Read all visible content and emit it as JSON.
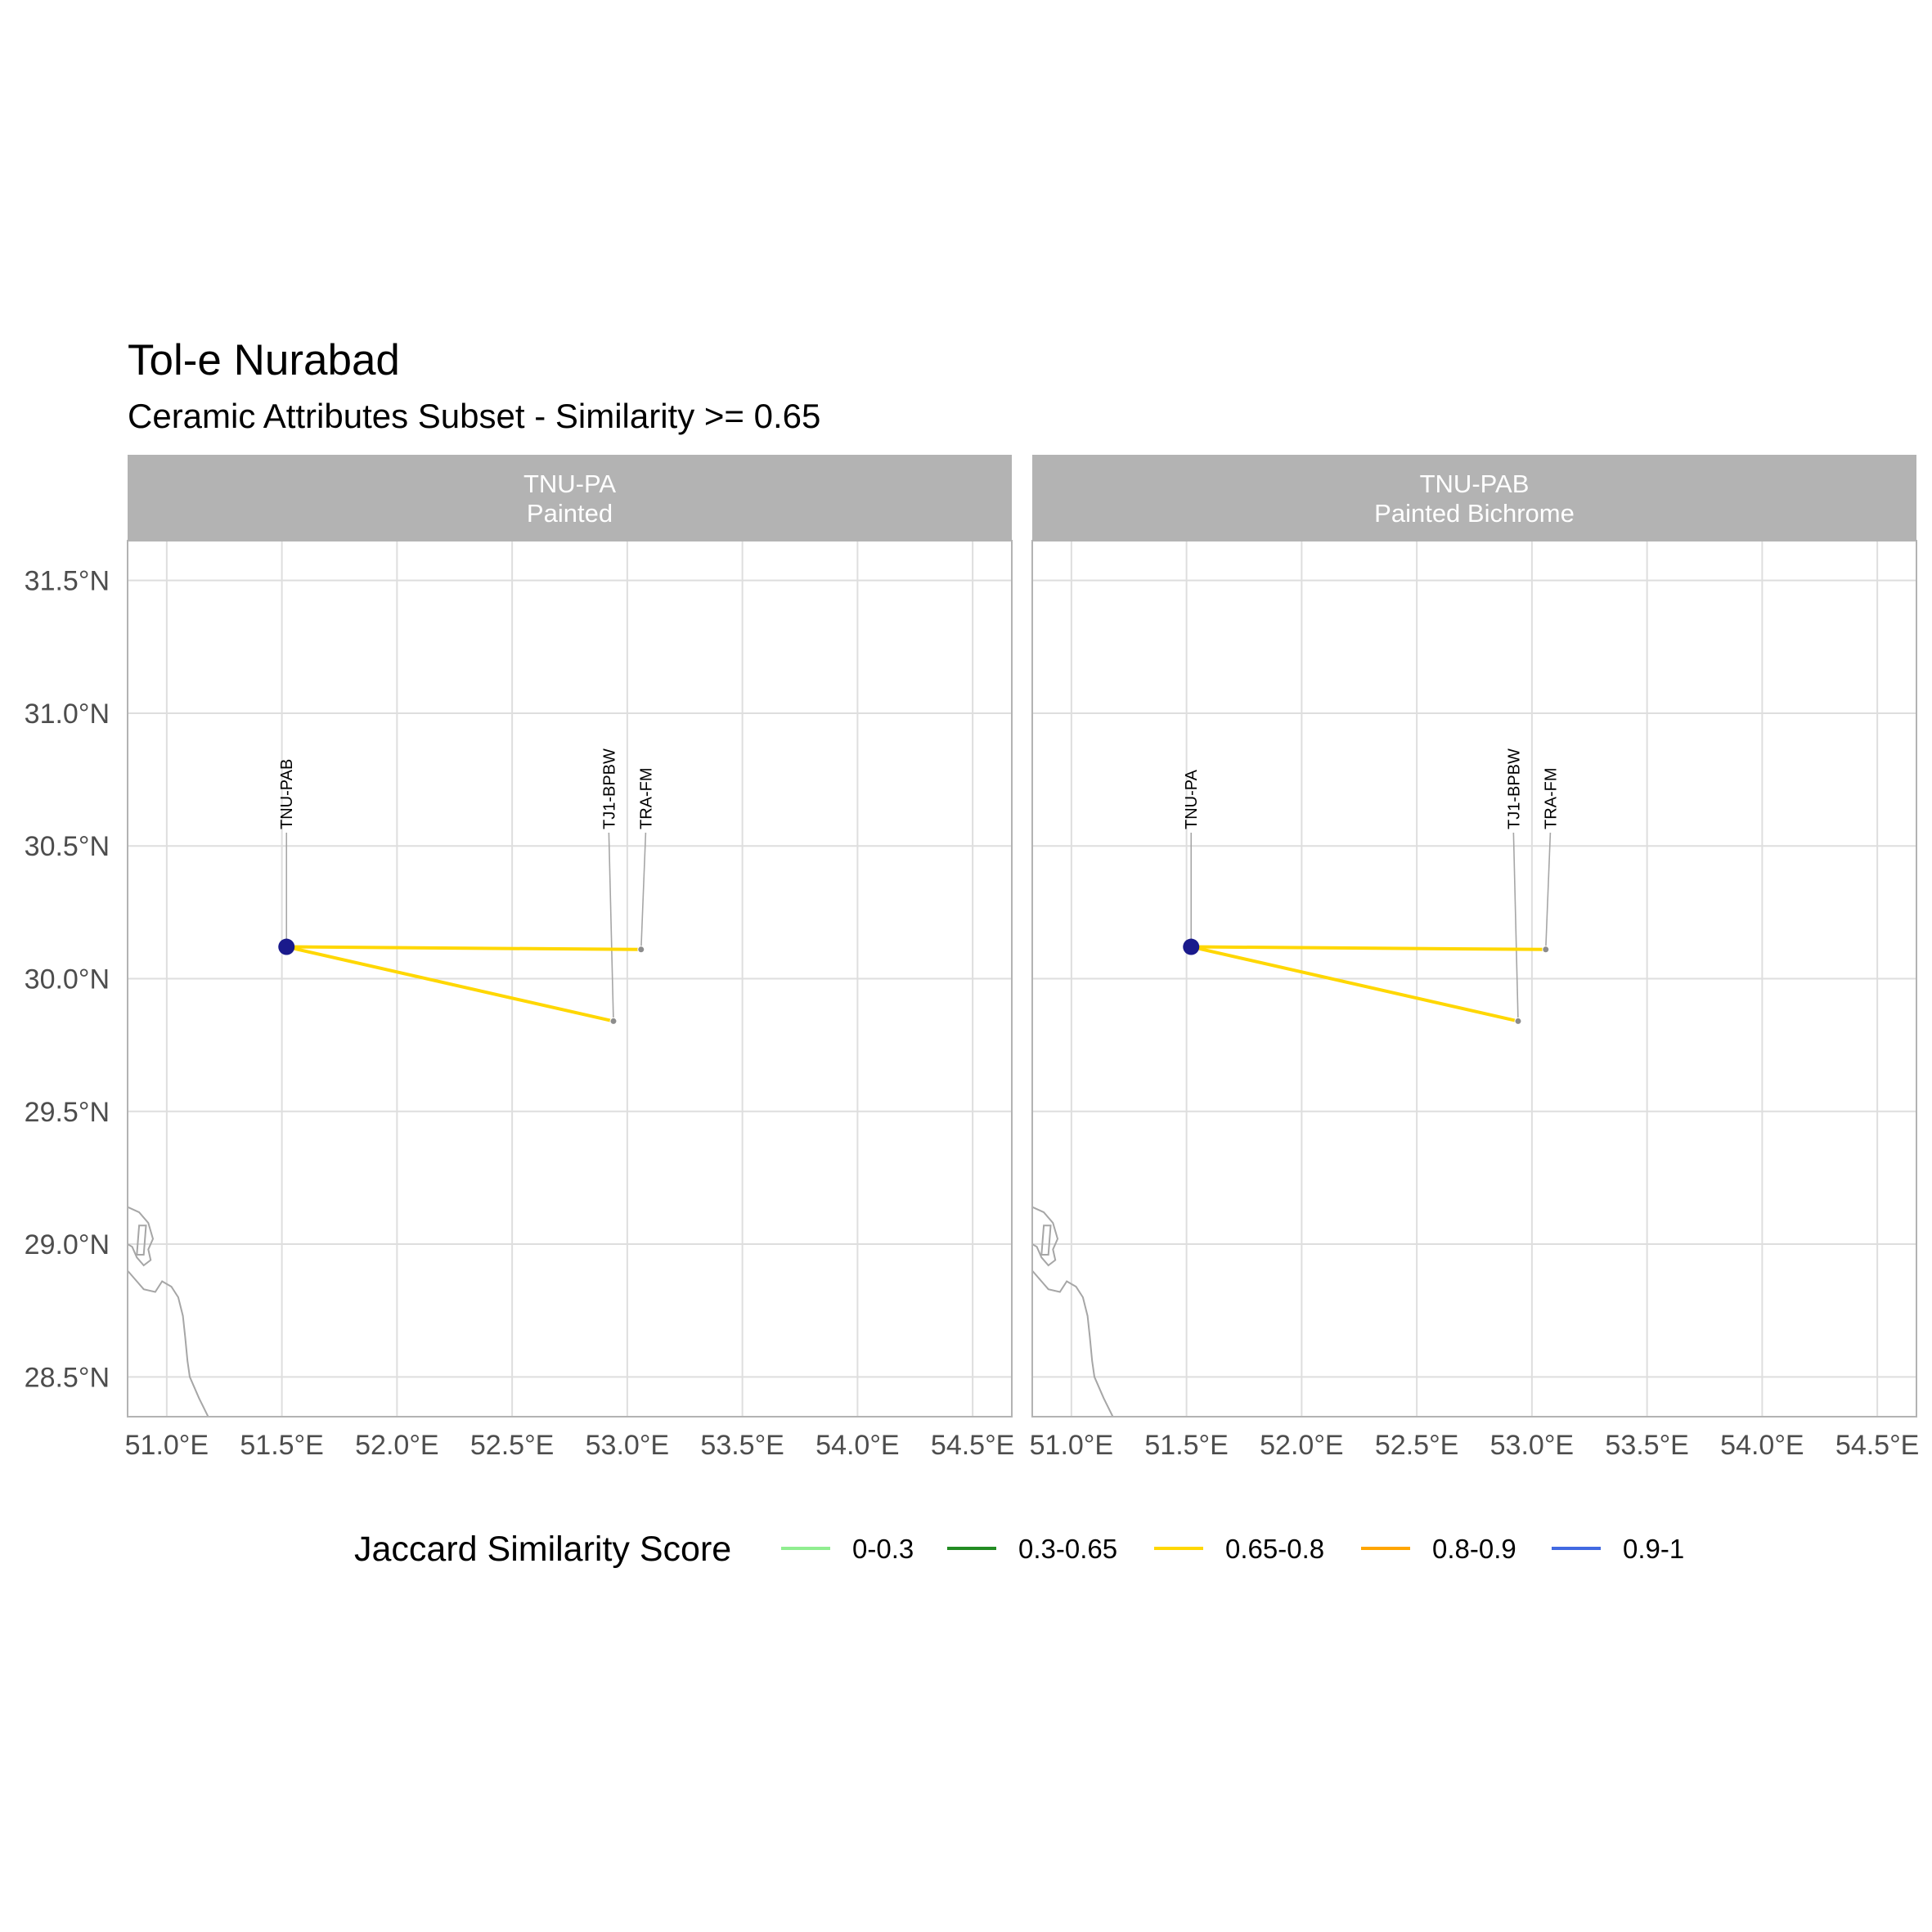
{
  "title": "Tol-e Nurabad",
  "subtitle": "Ceramic Attributes Subset - Similarity >= 0.65",
  "colors": {
    "strip_bg": "#b3b3b3",
    "grid": "#dedede",
    "panel_border": "#b3b3b3",
    "coast": "#a6a6a6",
    "focal_point": "#1a1a8c",
    "site_point": "#8c8c8c",
    "leader": "#a6a6a6"
  },
  "chart_data": {
    "type": "map",
    "x_axis": {
      "range": [
        50.83,
        54.67
      ],
      "breaks": [
        51.0,
        51.5,
        52.0,
        52.5,
        53.0,
        53.5,
        54.0,
        54.5
      ],
      "labels": [
        "51.0°E",
        "51.5°E",
        "52.0°E",
        "52.5°E",
        "53.0°E",
        "53.5°E",
        "54.0°E",
        "54.5°E"
      ]
    },
    "y_axis": {
      "range": [
        28.35,
        31.65
      ],
      "breaks": [
        28.5,
        29.0,
        29.5,
        30.0,
        30.5,
        31.0,
        31.5
      ],
      "labels": [
        "28.5°N",
        "29.0°N",
        "29.5°N",
        "30.0°N",
        "30.5°N",
        "31.0°N",
        "31.5°N"
      ]
    },
    "coastline": [
      [
        50.83,
        29.14
      ],
      [
        50.88,
        29.12
      ],
      [
        50.92,
        29.08
      ],
      [
        50.94,
        29.02
      ],
      [
        50.92,
        28.98
      ],
      [
        50.93,
        28.94
      ],
      [
        50.9,
        28.92
      ],
      [
        50.87,
        28.95
      ],
      [
        50.85,
        28.99
      ],
      [
        50.83,
        29.0
      ],
      [
        50.83,
        28.9
      ],
      [
        50.87,
        28.86
      ],
      [
        50.9,
        28.83
      ],
      [
        50.95,
        28.82
      ],
      [
        50.98,
        28.86
      ],
      [
        51.02,
        28.84
      ],
      [
        51.05,
        28.8
      ],
      [
        51.07,
        28.73
      ],
      [
        51.08,
        28.65
      ],
      [
        51.09,
        28.56
      ],
      [
        51.1,
        28.5
      ],
      [
        51.14,
        28.42
      ],
      [
        51.18,
        28.35
      ]
    ],
    "coastline_islet": [
      [
        50.87,
        28.96
      ],
      [
        50.88,
        29.07
      ],
      [
        50.91,
        29.07
      ],
      [
        50.9,
        28.96
      ]
    ],
    "panels": [
      {
        "strip_line1": "TNU-PA",
        "strip_line2": "Painted",
        "focal": {
          "name": "TNU-PAB",
          "lon": 51.52,
          "lat": 30.12
        },
        "links": [
          {
            "name": "TJ1-BPBW",
            "lon": 52.94,
            "lat": 29.84,
            "similarity_bin": "0.65-0.8",
            "color": "#FFD700"
          },
          {
            "name": "TRA-FM",
            "lon": 53.06,
            "lat": 30.11,
            "similarity_bin": "0.65-0.8",
            "color": "#FFD700"
          }
        ],
        "labels": [
          {
            "text": "TNU-PAB",
            "anchor_lon": 51.52,
            "lat": 30.12,
            "label_lon": 51.52
          },
          {
            "text": "TJ1-BPBW",
            "anchor_lon": 52.94,
            "lat": 29.84,
            "label_lon": 52.92
          },
          {
            "text": "TRA-FM",
            "anchor_lon": 53.06,
            "lat": 30.11,
            "label_lon": 53.08
          }
        ]
      },
      {
        "strip_line1": "TNU-PAB",
        "strip_line2": "Painted Bichrome",
        "focal": {
          "name": "TNU-PA",
          "lon": 51.52,
          "lat": 30.12
        },
        "links": [
          {
            "name": "TJ1-BPBW",
            "lon": 52.94,
            "lat": 29.84,
            "similarity_bin": "0.65-0.8",
            "color": "#FFD700"
          },
          {
            "name": "TRA-FM",
            "lon": 53.06,
            "lat": 30.11,
            "similarity_bin": "0.65-0.8",
            "color": "#FFD700"
          }
        ],
        "labels": [
          {
            "text": "TNU-PA",
            "anchor_lon": 51.52,
            "lat": 30.12,
            "label_lon": 51.52
          },
          {
            "text": "TJ1-BPBW",
            "anchor_lon": 52.94,
            "lat": 29.84,
            "label_lon": 52.92
          },
          {
            "text": "TRA-FM",
            "anchor_lon": 53.06,
            "lat": 30.11,
            "label_lon": 53.08
          }
        ]
      }
    ],
    "legend": {
      "title": "Jaccard Similarity Score",
      "position": "bottom",
      "items": [
        {
          "label": "0-0.3",
          "color": "#90EE90"
        },
        {
          "label": "0.3-0.65",
          "color": "#228B22"
        },
        {
          "label": "0.65-0.8",
          "color": "#FFD700"
        },
        {
          "label": "0.8-0.9",
          "color": "#FFA500"
        },
        {
          "label": "0.9-1",
          "color": "#4169E1"
        }
      ]
    }
  }
}
